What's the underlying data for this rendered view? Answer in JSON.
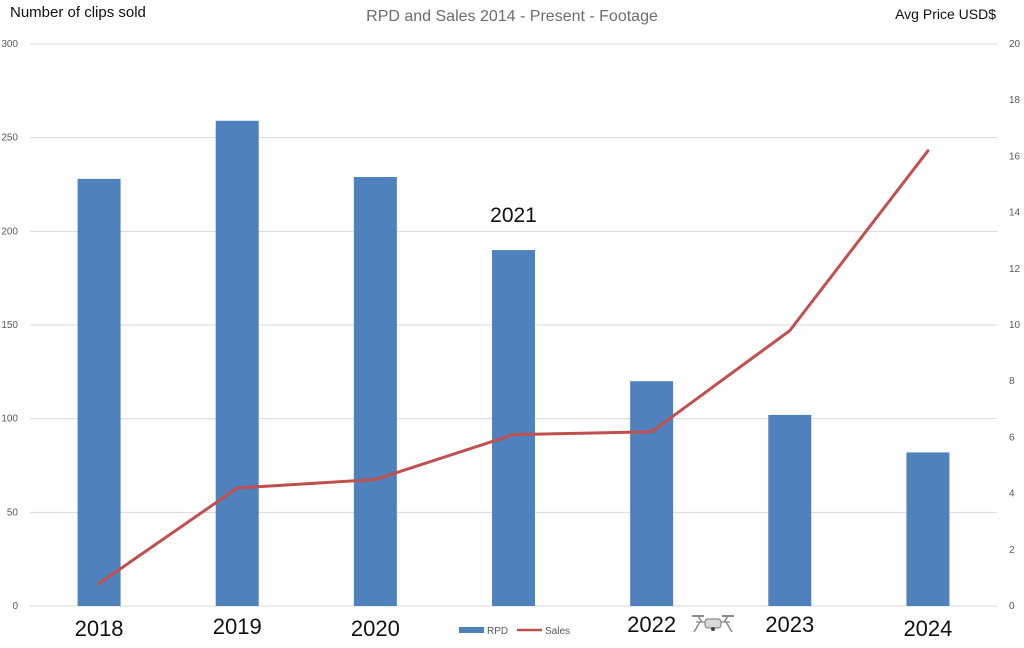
{
  "chart_data": {
    "type": "bar+line",
    "title": "RPD and Sales 2014 - Present - Footage",
    "ylabel_left": "Number of clips sold",
    "ylabel_right": "Avg Price USD$",
    "categories": [
      "2018",
      "2019",
      "2020",
      "2021",
      "2022",
      "2023",
      "2024"
    ],
    "ylim_left": [
      0,
      300
    ],
    "yticks_left": [
      0,
      50,
      100,
      150,
      200,
      250,
      300
    ],
    "ylim_right": [
      0,
      20
    ],
    "yticks_right": [
      0,
      2,
      4,
      6,
      8,
      10,
      12,
      14,
      16,
      18,
      20
    ],
    "grid": true,
    "legend_position": "bottom",
    "series": [
      {
        "name": "RPD",
        "type": "bar",
        "axis": "left",
        "color": "#4f81bd",
        "values": [
          228,
          259,
          229,
          190,
          120,
          102,
          82
        ]
      },
      {
        "name": "Sales",
        "type": "line",
        "axis": "right",
        "color": "#c0504d",
        "values": [
          0.8,
          4.2,
          4.5,
          6.1,
          6.2,
          9.8,
          16.2
        ]
      }
    ],
    "annotations": [
      {
        "text": "2021",
        "category": "2021"
      }
    ],
    "icons": [
      "drone-icon"
    ]
  }
}
